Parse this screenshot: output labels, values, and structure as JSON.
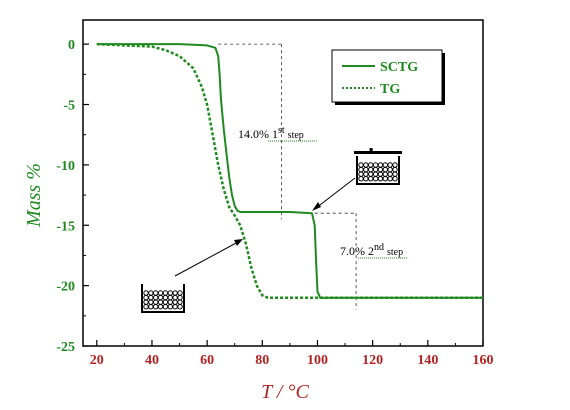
{
  "chart_data": {
    "type": "line",
    "xlabel_var": "T",
    "xlabel_unit": "/ °C",
    "ylabel": "Mass %",
    "xlim": [
      15,
      160
    ],
    "ylim": [
      -25,
      2
    ],
    "xticks": [
      "20",
      "40",
      "60",
      "80",
      "100",
      "120",
      "140",
      "160"
    ],
    "yticks": [
      "0",
      "-5",
      "-10",
      "-15",
      "-20",
      "-25"
    ],
    "grid": false,
    "legend_position": "top-right",
    "colors": {
      "series": "#1f8a1f",
      "ytick": "#1f8a1f",
      "xtick": "#b22222",
      "ylabel": "#1f8a1f",
      "xlabel": "#b22222"
    },
    "series": [
      {
        "name": "SCTG",
        "style": "solid",
        "x": [
          20,
          50,
          60,
          63,
          64,
          64.5,
          65,
          66,
          67,
          68,
          69,
          70,
          71,
          72,
          80,
          90,
          98,
          99,
          99.5,
          100,
          101,
          102,
          110,
          130,
          160
        ],
        "y": [
          0,
          0,
          -0.1,
          -0.3,
          -1,
          -2.5,
          -4.5,
          -7,
          -9,
          -11,
          -12.5,
          -13.4,
          -13.8,
          -13.9,
          -13.9,
          -13.9,
          -14,
          -15,
          -18,
          -20.5,
          -21,
          -21,
          -21,
          -21,
          -21
        ]
      },
      {
        "name": "TG",
        "style": "dashed",
        "x": [
          20,
          30,
          40,
          45,
          50,
          55,
          58,
          60,
          62,
          64,
          66,
          68,
          70,
          72,
          74,
          76,
          78,
          80,
          82,
          90,
          100,
          130,
          160
        ],
        "y": [
          0,
          -0.1,
          -0.2,
          -0.5,
          -1,
          -2,
          -3.5,
          -5,
          -7.5,
          -10,
          -12,
          -13.5,
          -14.2,
          -15,
          -16.5,
          -18.5,
          -20,
          -20.8,
          -21,
          -21,
          -21,
          -21,
          -21
        ]
      }
    ],
    "annotations": [
      {
        "pct": "14.0%",
        "step_num": "1",
        "step_sup": "st",
        "step_word": "step"
      },
      {
        "pct": "7.0%",
        "step_num": "2",
        "step_sup": "nd",
        "step_word": "step"
      }
    ]
  }
}
